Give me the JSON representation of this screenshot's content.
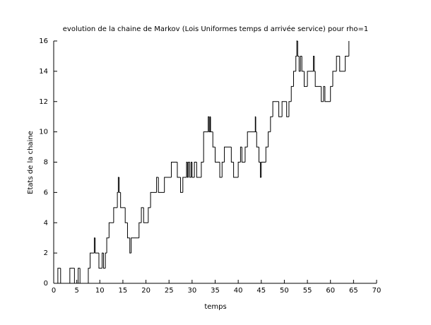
{
  "chart_data": {
    "type": "step",
    "title": "evolution de la chaine de Markov (Lois Uniformes temps d arrivée service) pour rho=1",
    "xlabel": "temps",
    "ylabel": "Etats de la chaine",
    "x": [
      0,
      0.9,
      1.5,
      3.5,
      4.5,
      5.3,
      5.7,
      7.5,
      7.9,
      8.8,
      9.0,
      9.8,
      10.5,
      10.8,
      11.2,
      11.5,
      12,
      13,
      13.8,
      14,
      14.2,
      14.5,
      15.5,
      16,
      16.5,
      16.8,
      18.5,
      19,
      19.5,
      20.5,
      21,
      22.3,
      22.7,
      24,
      25.5,
      26.8,
      27.5,
      28,
      28.8,
      29,
      29.2,
      29.5,
      29.8,
      30,
      30.5,
      31,
      32,
      32.5,
      33.5,
      33.7,
      33.9,
      34,
      34.5,
      35,
      36,
      36.5,
      37,
      38.5,
      39,
      40,
      40.5,
      40.8,
      41.5,
      42,
      43.7,
      43.8,
      44,
      44.5,
      44.8,
      45,
      46,
      46.5,
      47,
      47.5,
      48.8,
      49.5,
      50.5,
      51,
      51.5,
      52,
      52.5,
      52.7,
      52.9,
      53.2,
      53.5,
      53.8,
      54.3,
      55,
      56.3,
      56.5,
      56.7,
      58,
      58.5,
      58.8,
      60,
      60.5,
      61.3,
      62,
      63.2,
      64
    ],
    "values": [
      0,
      1,
      0,
      1,
      0,
      1,
      0,
      1,
      2,
      3,
      2,
      1,
      2,
      1,
      2,
      3,
      4,
      5,
      6,
      7,
      6,
      5,
      4,
      3,
      2,
      3,
      4,
      5,
      4,
      5,
      6,
      7,
      6,
      7,
      8,
      7,
      6,
      7,
      8,
      7,
      8,
      7,
      8,
      7,
      8,
      7,
      8,
      10,
      11,
      10,
      11,
      10,
      9,
      8,
      7,
      8,
      9,
      8,
      7,
      8,
      9,
      8,
      9,
      10,
      11,
      10,
      9,
      8,
      7,
      8,
      9,
      10,
      11,
      12,
      11,
      12,
      11,
      12,
      13,
      14,
      15,
      16,
      15,
      14,
      15,
      14,
      13,
      14,
      15,
      14,
      13,
      12,
      13,
      12,
      13,
      14,
      15,
      14,
      15,
      16
    ],
    "color": "#000000",
    "xlim": [
      0,
      70
    ],
    "xticks": [
      0,
      5,
      10,
      15,
      20,
      25,
      30,
      35,
      40,
      45,
      50,
      55,
      60,
      65,
      70
    ],
    "ylim": [
      0,
      16
    ],
    "yticks": [
      0,
      2,
      4,
      6,
      8,
      10,
      12,
      14,
      16
    ]
  }
}
